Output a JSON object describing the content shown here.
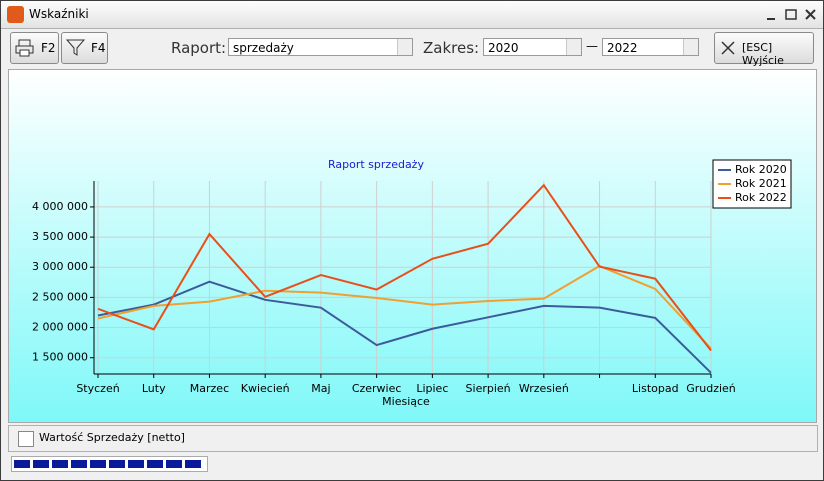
{
  "window": {
    "title": "Wskaźniki"
  },
  "toolbar": {
    "print_key": "F2",
    "filter_key": "F4",
    "report_label": "Raport:",
    "report_value": "sprzedaży",
    "range_label": "Zakres:",
    "range_from": "2020",
    "range_separator": "—",
    "range_to": "2022",
    "exit": "[ESC] Wyjście"
  },
  "footer": {
    "checkbox_label": "Wartość Sprzedaży [netto]"
  },
  "chart_data": {
    "type": "line",
    "title": "Raport sprzedaży",
    "x_label": "Miesiące",
    "categories": [
      "Styczeń",
      "Luty",
      "Marzec",
      "Kwiecień",
      "Maj",
      "Czerwiec",
      "Lipiec",
      "Sierpień",
      "Wrzesień",
      null,
      "Listopad",
      "Grudzień"
    ],
    "series": [
      {
        "name": "Rok 2020",
        "color": "#3b5b9a",
        "values": [
          2200000,
          2380000,
          2760000,
          2460000,
          2330000,
          1710000,
          1980000,
          2170000,
          2360000,
          2330000,
          2160000,
          1250000
        ]
      },
      {
        "name": "Rok 2021",
        "color": "#f0a030",
        "values": [
          2150000,
          2360000,
          2430000,
          2610000,
          2580000,
          2490000,
          2380000,
          2440000,
          2480000,
          3020000,
          2640000,
          1650000
        ]
      },
      {
        "name": "Rok 2022",
        "color": "#e8501a",
        "values": [
          2310000,
          1970000,
          3550000,
          2510000,
          2870000,
          2630000,
          3140000,
          3390000,
          4360000,
          3010000,
          2810000,
          1620000
        ]
      }
    ],
    "ylim": [
      1230000,
      4430000
    ],
    "yticks": [
      {
        "value": 1500000,
        "label": "1 500 000"
      },
      {
        "value": 2000000,
        "label": "2 000 000"
      },
      {
        "value": 2500000,
        "label": "2 500 000"
      },
      {
        "value": 3000000,
        "label": "3 000 000"
      },
      {
        "value": 3500000,
        "label": "3 500 000"
      },
      {
        "value": 4000000,
        "label": "4 000 000"
      }
    ],
    "grid": true,
    "legend": "top-right"
  }
}
